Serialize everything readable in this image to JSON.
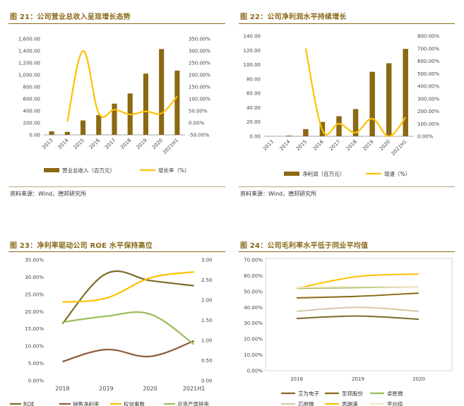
{
  "figures": {
    "fig21": {
      "title": "图 21：公司营业总收入呈现增长态势",
      "source": "资料来源：Wind，德邦研究所"
    },
    "fig22": {
      "title": "图 22：公司净利润水平持续增长",
      "source": "资料来源：Wind，德邦研究所"
    },
    "fig23": {
      "title": "图 23：净利率驱动公司 ROE 水平保持高位"
    },
    "fig24": {
      "title": "图 24：公司毛利率水平低于同业平均值"
    }
  },
  "colors": {
    "bar": "#8b6914",
    "line_yellow": "#ffc000",
    "brown": "#8b5a3c",
    "green": "#9bbb59",
    "beige": "#d9c7a6",
    "dark_olive": "#7f6a2a",
    "title_color": "#8a6a1a"
  },
  "chart_data": [
    {
      "id": "fig21",
      "type": "bar",
      "categories": [
        "2013",
        "2014",
        "2015",
        "2016",
        "2017",
        "2018",
        "2019",
        "2020",
        "2021H1"
      ],
      "series": [
        {
          "name": "营业总收入（百万元）",
          "type": "bar",
          "axis": "left",
          "values": [
            60,
            50,
            240,
            330,
            520,
            690,
            1020,
            1430,
            1070
          ]
        },
        {
          "name": "增长率（%）",
          "type": "line",
          "axis": "right",
          "values": [
            null,
            5,
            300,
            40,
            55,
            35,
            48,
            40,
            110
          ]
        }
      ],
      "left_ticks": [
        "1,600.00",
        "1,400.00",
        "1,200.00",
        "1,000.00",
        "800.00",
        "600.00",
        "400.00",
        "200.00",
        "0.00"
      ],
      "right_ticks": [
        "350.00%",
        "300.00%",
        "250.00%",
        "200.00%",
        "150.00%",
        "100.00%",
        "50.00%",
        "0.00%",
        "-50.00%"
      ],
      "ylim": [
        0,
        1600
      ],
      "y2lim": [
        -50,
        350
      ]
    },
    {
      "id": "fig22",
      "type": "bar",
      "categories": [
        "2013",
        "2014",
        "2015",
        "2016",
        "2017",
        "2018",
        "2019",
        "2020",
        "2021H1"
      ],
      "series": [
        {
          "name": "净利润（百万元）",
          "type": "bar",
          "axis": "left",
          "values": [
            0,
            1,
            10,
            20,
            28,
            38,
            90,
            102,
            122
          ]
        },
        {
          "name": "增速（%）",
          "type": "line",
          "axis": "right",
          "values": [
            null,
            null,
            700,
            50,
            100,
            30,
            140,
            0,
            150
          ]
        }
      ],
      "left_ticks": [
        "140.00",
        "120.00",
        "100.00",
        "80.00",
        "60.00",
        "40.00",
        "20.00",
        "0.00"
      ],
      "right_ticks": [
        "800.00%",
        "700.00%",
        "600.00%",
        "500.00%",
        "400.00%",
        "300.00%",
        "200.00%",
        "100.00%",
        "0.00%"
      ],
      "ylim": [
        0,
        140
      ],
      "y2lim": [
        0,
        800
      ]
    },
    {
      "id": "fig23",
      "type": "line",
      "categories": [
        "2018",
        "2019",
        "2020",
        "2021H1"
      ],
      "series": [
        {
          "name": "ROE",
          "axis": "left",
          "values": [
            16.5,
            31,
            29,
            27.5
          ]
        },
        {
          "name": "销售净利率",
          "axis": "left",
          "values": [
            5.5,
            9,
            7,
            11.5
          ]
        },
        {
          "name": "权益乘数",
          "axis": "right",
          "values": [
            1.95,
            2.05,
            2.55,
            2.7
          ]
        },
        {
          "name": "总资产周转率",
          "axis": "right",
          "values": [
            1.45,
            1.6,
            1.65,
            0.9
          ]
        }
      ],
      "left_ticks": [
        "35.00%",
        "30.00%",
        "25.00%",
        "20.00%",
        "15.00%",
        "10.00%",
        "5.00%",
        "0.00%"
      ],
      "right_ticks": [
        "3.00",
        "2.50",
        "2.00",
        "1.50",
        "1.00",
        "0.50",
        "0.00"
      ],
      "ylim": [
        0,
        35
      ],
      "y2lim": [
        0,
        3
      ]
    },
    {
      "id": "fig24",
      "type": "line",
      "categories": [
        "2018",
        "2019",
        "2020"
      ],
      "series": [
        {
          "name": "艾为电子",
          "values": [
            33,
            34.5,
            32.5
          ]
        },
        {
          "name": "圣邦股份",
          "values": [
            46,
            47,
            49
          ]
        },
        {
          "name": "卓胜微",
          "values": [
            52,
            52.5,
            53
          ]
        },
        {
          "name": "芯朋微",
          "values": [
            37.5,
            40,
            37.5
          ]
        },
        {
          "name": "思瑞浦",
          "values": [
            52,
            59.5,
            61
          ]
        },
        {
          "name": "平均值",
          "values": [
            52.5,
            53,
            53
          ]
        }
      ],
      "left_ticks": [
        "70.00%",
        "60.00%",
        "50.00%",
        "40.00%",
        "30.00%",
        "20.00%",
        "10.00%",
        "0.00%"
      ],
      "ylim": [
        0,
        70
      ]
    }
  ]
}
